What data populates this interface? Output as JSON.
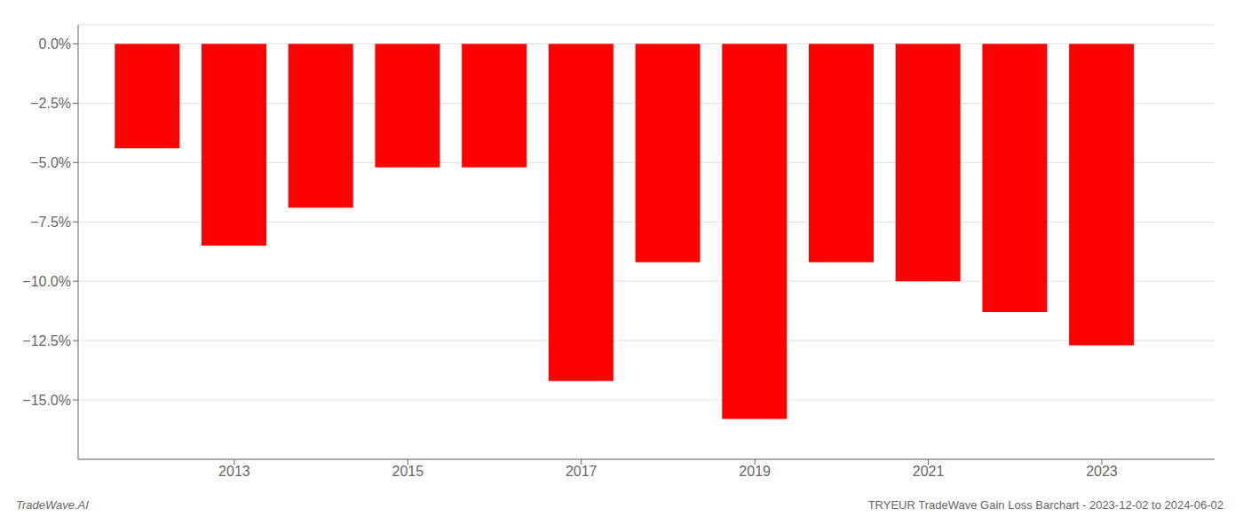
{
  "chart_data": {
    "type": "bar",
    "x": [
      2012,
      2013,
      2014,
      2015,
      2016,
      2017,
      2018,
      2019,
      2020,
      2021,
      2022,
      2023
    ],
    "values": [
      -0.044,
      -0.085,
      -0.069,
      -0.052,
      -0.052,
      -0.142,
      -0.092,
      -0.158,
      -0.092,
      -0.1,
      -0.113,
      -0.127
    ],
    "color": "#ff0000",
    "xlim": [
      2011.2,
      2024.3
    ],
    "xticks": [
      2013,
      2015,
      2017,
      2019,
      2021,
      2023
    ],
    "ylim": [
      -0.175,
      0.008
    ],
    "yticks": [
      {
        "value": 0.0,
        "label": "0.0%"
      },
      {
        "value": -0.025,
        "label": "−2.5%"
      },
      {
        "value": -0.05,
        "label": "−5.0%"
      },
      {
        "value": -0.075,
        "label": "−7.5%"
      },
      {
        "value": -0.1,
        "label": "−10.0%"
      },
      {
        "value": -0.125,
        "label": "−12.5%"
      },
      {
        "value": -0.15,
        "label": "−15.0%"
      }
    ],
    "grid": true,
    "annotations": [
      "TradeWave.AI",
      "TRYEUR TradeWave Gain Loss Barchart - 2023-12-02 to 2024-06-02"
    ]
  }
}
